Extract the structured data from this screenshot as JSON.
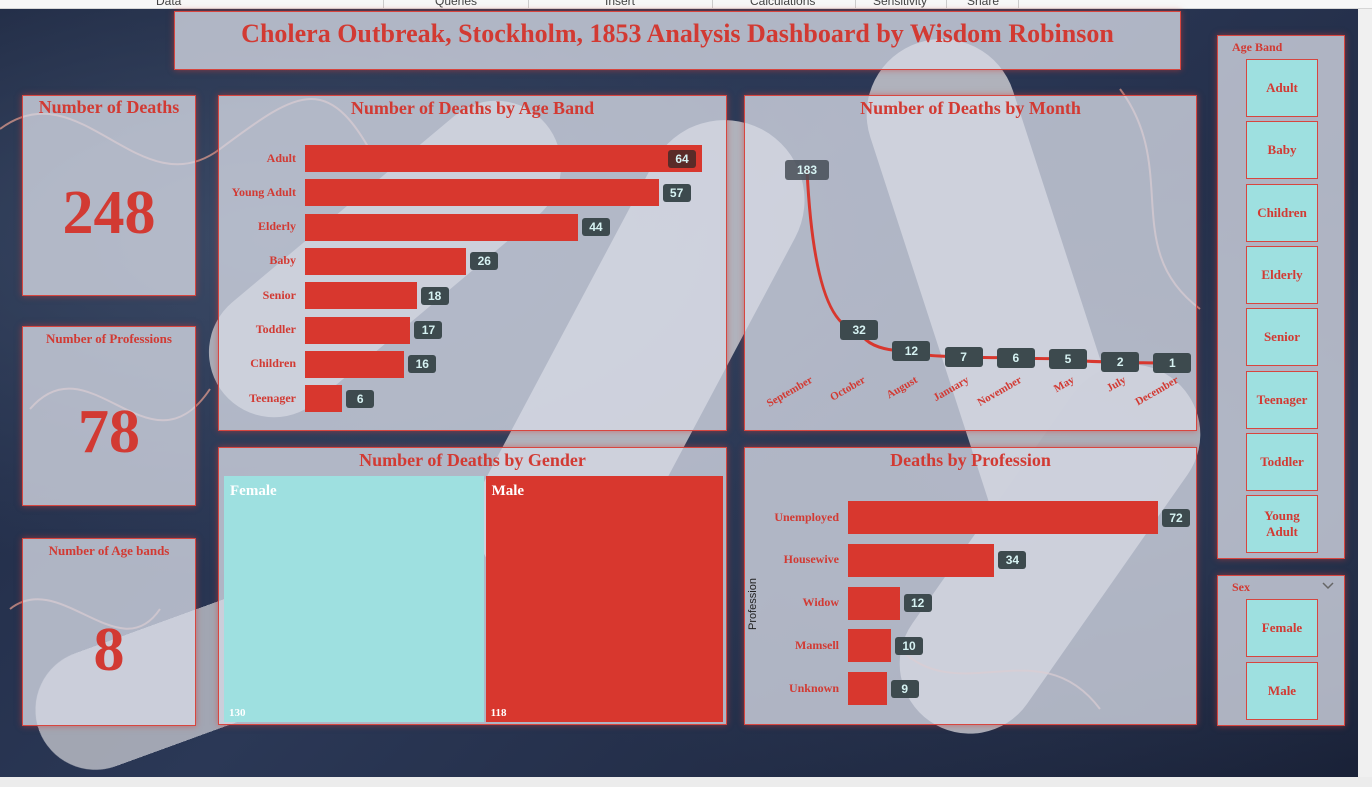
{
  "ribbon": {
    "tabs": [
      "Data",
      "Queries",
      "Insert",
      "Calculations",
      "Sensitivity",
      "Share"
    ]
  },
  "dashboard": {
    "title": "Cholera Outbreak, Stockholm, 1853 Analysis Dashboard by Wisdom Robinson"
  },
  "kpis": [
    {
      "label": "Number of Deaths",
      "value": "248"
    },
    {
      "label": "Number of Professions",
      "value": "78"
    },
    {
      "label": "Number of Age bands",
      "value": "8"
    }
  ],
  "age_band_slicer": {
    "label": "Age Band",
    "options": [
      "Adult",
      "Baby",
      "Children",
      "Elderly",
      "Senior",
      "Teenager",
      "Toddler",
      "Young Adult"
    ]
  },
  "sex_slicer": {
    "label": "Sex",
    "options": [
      "Female",
      "Male"
    ],
    "chevron": "chevron-down-icon"
  },
  "colors": {
    "accent": "#d23a33",
    "bar": "#d8372e",
    "teal": "#9ee0e0",
    "badge": "#3d4a4e"
  },
  "chart_data": [
    {
      "type": "bar",
      "orientation": "horizontal",
      "title": "Number of Deaths by Age Band",
      "categories": [
        "Adult",
        "Young Adult",
        "Elderly",
        "Baby",
        "Senior",
        "Toddler",
        "Children",
        "Teenager"
      ],
      "values": [
        64,
        57,
        44,
        26,
        18,
        17,
        16,
        6
      ],
      "xlim": [
        0,
        64
      ]
    },
    {
      "type": "line",
      "title": "Number of Deaths by Month",
      "categories": [
        "September",
        "October",
        "August",
        "January",
        "November",
        "May",
        "July",
        "December"
      ],
      "values": [
        183,
        32,
        12,
        7,
        6,
        5,
        2,
        1
      ],
      "ylim": [
        0,
        183
      ]
    },
    {
      "type": "treemap",
      "title": "Number of Deaths by Gender",
      "categories": [
        "Female",
        "Male"
      ],
      "values": [
        130,
        118
      ]
    },
    {
      "type": "bar",
      "orientation": "horizontal",
      "title": "Deaths by Profession",
      "ylabel": "Profession",
      "categories": [
        "Unemployed",
        "Housewive",
        "Widow",
        "Mamsell",
        "Unknown"
      ],
      "values": [
        72,
        34,
        12,
        10,
        9
      ],
      "xlim": [
        0,
        72
      ]
    }
  ]
}
